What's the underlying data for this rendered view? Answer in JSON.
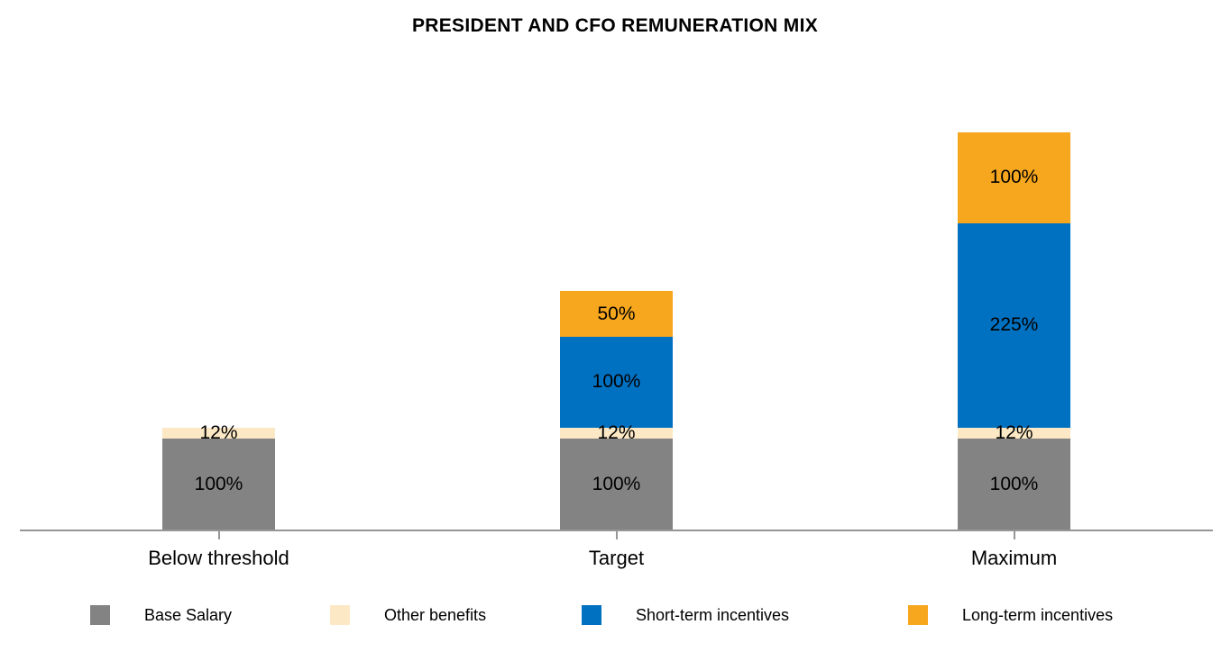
{
  "chart_data": {
    "type": "bar",
    "stacked": true,
    "title": "PRESIDENT AND CFO REMUNERATION MIX",
    "categories": [
      "Below threshold",
      "Target",
      "Maximum"
    ],
    "series": [
      {
        "name": "Base Salary",
        "color": "#838383",
        "values": [
          100,
          100,
          100
        ]
      },
      {
        "name": "Other benefits",
        "color": "#FCE8C4",
        "values": [
          12,
          12,
          12
        ]
      },
      {
        "name": "Short-term incentives",
        "color": "#0070C0",
        "values": [
          0,
          100,
          225
        ]
      },
      {
        "name": "Long-term incentives",
        "color": "#F7A71E",
        "values": [
          0,
          50,
          100
        ]
      }
    ],
    "value_suffix": "%",
    "data_labels": true,
    "xlabel": "",
    "ylabel": "",
    "ylim": [
      0,
      450
    ],
    "grid": false,
    "axis_color": "#969696",
    "legend_position": "bottom"
  }
}
